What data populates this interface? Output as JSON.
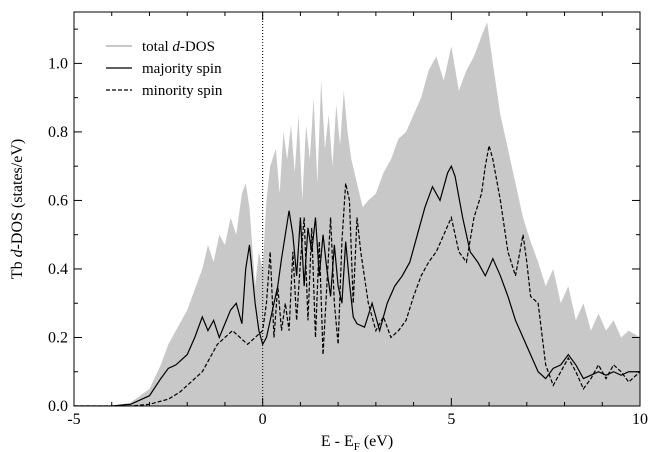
{
  "chart_data": {
    "type": "line",
    "xlabel": {
      "main": "E - E",
      "sub": "F",
      "unit": " (eV)"
    },
    "ylabel": {
      "pre": "Tb ",
      "ital": "d",
      "post": "-DOS (states/eV)"
    },
    "xlim": [
      -5,
      10
    ],
    "ylim": [
      0,
      1.15
    ],
    "xticks": [
      -5,
      0,
      5,
      10
    ],
    "yticks": [
      0.0,
      0.2,
      0.4,
      0.6,
      0.8,
      1.0
    ],
    "xtick_labels": [
      "-5",
      "0",
      "5",
      "10"
    ],
    "ytick_labels": [
      "0.0",
      "0.2",
      "0.4",
      "0.6",
      "0.8",
      "1.0"
    ],
    "fermi_line_x": 0,
    "legend_position": "top-left",
    "colors": {
      "total": "#c8c8c8",
      "majority": "#000000",
      "minority": "#000000",
      "axes": "#000000"
    },
    "series": [
      {
        "name": "total d-DOS",
        "legend_pre": "total ",
        "legend_ital": "d",
        "legend_post": "-DOS",
        "style": "filled",
        "x": [
          -5,
          -4,
          -3.5,
          -3.0,
          -2.7,
          -2.5,
          -2.3,
          -2.0,
          -1.8,
          -1.6,
          -1.45,
          -1.3,
          -1.15,
          -1.0,
          -0.85,
          -0.7,
          -0.55,
          -0.45,
          -0.35,
          -0.2,
          -0.1,
          0.0,
          0.1,
          0.2,
          0.35,
          0.45,
          0.55,
          0.65,
          0.75,
          0.85,
          0.95,
          1.05,
          1.15,
          1.25,
          1.35,
          1.45,
          1.55,
          1.65,
          1.75,
          1.85,
          1.95,
          2.05,
          2.15,
          2.25,
          2.35,
          2.5,
          2.65,
          2.8,
          3.0,
          3.2,
          3.4,
          3.6,
          3.8,
          4.0,
          4.2,
          4.4,
          4.6,
          4.8,
          5.0,
          5.2,
          5.4,
          5.6,
          5.8,
          5.95,
          6.1,
          6.3,
          6.5,
          6.7,
          6.9,
          7.1,
          7.3,
          7.5,
          7.7,
          7.9,
          8.1,
          8.3,
          8.5,
          8.7,
          8.9,
          9.1,
          9.3,
          9.5,
          9.7,
          10.0
        ],
        "y": [
          0.0,
          0.0,
          0.01,
          0.05,
          0.12,
          0.18,
          0.22,
          0.28,
          0.34,
          0.4,
          0.47,
          0.42,
          0.5,
          0.47,
          0.55,
          0.5,
          0.62,
          0.65,
          0.58,
          0.35,
          0.45,
          0.4,
          0.6,
          0.7,
          0.75,
          0.62,
          0.8,
          0.72,
          0.82,
          0.68,
          0.85,
          0.6,
          0.82,
          0.72,
          0.9,
          0.65,
          0.95,
          0.75,
          0.85,
          0.7,
          0.88,
          0.76,
          0.92,
          0.8,
          0.72,
          0.65,
          0.58,
          0.6,
          0.62,
          0.68,
          0.72,
          0.78,
          0.8,
          0.85,
          0.9,
          0.98,
          1.02,
          0.95,
          1.05,
          0.92,
          0.98,
          1.02,
          1.08,
          1.12,
          1.0,
          0.85,
          0.75,
          0.65,
          0.55,
          0.48,
          0.42,
          0.35,
          0.4,
          0.3,
          0.35,
          0.25,
          0.3,
          0.22,
          0.27,
          0.22,
          0.25,
          0.2,
          0.22,
          0.2
        ]
      },
      {
        "name": "majority spin",
        "legend_pre": "majority spin",
        "style": "solid",
        "x": [
          -5,
          -4,
          -3.5,
          -3.0,
          -2.7,
          -2.5,
          -2.3,
          -2.0,
          -1.8,
          -1.6,
          -1.45,
          -1.3,
          -1.15,
          -1.0,
          -0.85,
          -0.7,
          -0.55,
          -0.45,
          -0.35,
          -0.2,
          -0.1,
          0.0,
          0.1,
          0.2,
          0.3,
          0.4,
          0.5,
          0.6,
          0.7,
          0.8,
          0.9,
          1.0,
          1.1,
          1.2,
          1.3,
          1.4,
          1.5,
          1.6,
          1.7,
          1.8,
          1.9,
          2.0,
          2.1,
          2.2,
          2.3,
          2.4,
          2.5,
          2.7,
          2.9,
          3.1,
          3.3,
          3.5,
          3.7,
          3.9,
          4.1,
          4.3,
          4.5,
          4.7,
          4.9,
          5.0,
          5.1,
          5.3,
          5.5,
          5.7,
          5.9,
          6.1,
          6.3,
          6.5,
          6.7,
          6.9,
          7.1,
          7.3,
          7.5,
          7.7,
          7.9,
          8.1,
          8.3,
          8.5,
          8.7,
          8.9,
          9.1,
          9.3,
          9.5,
          9.7,
          10.0
        ],
        "y": [
          0.0,
          0.0,
          0.005,
          0.03,
          0.08,
          0.11,
          0.12,
          0.15,
          0.2,
          0.26,
          0.22,
          0.25,
          0.2,
          0.24,
          0.28,
          0.3,
          0.24,
          0.4,
          0.47,
          0.3,
          0.22,
          0.18,
          0.2,
          0.25,
          0.3,
          0.35,
          0.43,
          0.5,
          0.57,
          0.5,
          0.38,
          0.55,
          0.35,
          0.52,
          0.45,
          0.55,
          0.38,
          0.5,
          0.4,
          0.32,
          0.47,
          0.35,
          0.3,
          0.48,
          0.36,
          0.26,
          0.24,
          0.23,
          0.3,
          0.22,
          0.3,
          0.35,
          0.38,
          0.42,
          0.5,
          0.58,
          0.64,
          0.6,
          0.68,
          0.7,
          0.67,
          0.55,
          0.45,
          0.42,
          0.38,
          0.43,
          0.38,
          0.32,
          0.25,
          0.2,
          0.15,
          0.1,
          0.08,
          0.11,
          0.12,
          0.15,
          0.12,
          0.08,
          0.09,
          0.1,
          0.09,
          0.1,
          0.09,
          0.1,
          0.1
        ]
      },
      {
        "name": "minority spin",
        "legend_pre": "minority spin",
        "style": "dashed",
        "x": [
          -5,
          -4,
          -3.5,
          -3.0,
          -2.5,
          -2.2,
          -2.0,
          -1.8,
          -1.6,
          -1.4,
          -1.2,
          -1.0,
          -0.8,
          -0.6,
          -0.4,
          -0.2,
          0.0,
          0.1,
          0.2,
          0.3,
          0.4,
          0.5,
          0.6,
          0.7,
          0.8,
          0.9,
          1.0,
          1.1,
          1.2,
          1.3,
          1.4,
          1.5,
          1.6,
          1.7,
          1.8,
          1.9,
          2.0,
          2.1,
          2.2,
          2.3,
          2.4,
          2.5,
          2.6,
          2.8,
          3.0,
          3.2,
          3.4,
          3.6,
          3.8,
          4.0,
          4.2,
          4.4,
          4.6,
          4.8,
          5.0,
          5.2,
          5.4,
          5.6,
          5.8,
          5.9,
          6.0,
          6.1,
          6.3,
          6.5,
          6.7,
          6.9,
          7.0,
          7.1,
          7.3,
          7.5,
          7.7,
          7.9,
          8.1,
          8.3,
          8.5,
          8.7,
          8.9,
          9.1,
          9.3,
          9.5,
          9.7,
          10.0
        ],
        "y": [
          0.0,
          0.0,
          0.0,
          0.005,
          0.02,
          0.04,
          0.06,
          0.08,
          0.1,
          0.14,
          0.18,
          0.2,
          0.22,
          0.2,
          0.18,
          0.2,
          0.22,
          0.3,
          0.45,
          0.2,
          0.35,
          0.22,
          0.3,
          0.22,
          0.45,
          0.25,
          0.42,
          0.55,
          0.25,
          0.52,
          0.2,
          0.48,
          0.15,
          0.35,
          0.55,
          0.3,
          0.18,
          0.48,
          0.65,
          0.6,
          0.3,
          0.55,
          0.45,
          0.3,
          0.22,
          0.26,
          0.2,
          0.22,
          0.25,
          0.32,
          0.38,
          0.42,
          0.45,
          0.5,
          0.55,
          0.45,
          0.42,
          0.55,
          0.62,
          0.7,
          0.76,
          0.72,
          0.6,
          0.45,
          0.38,
          0.5,
          0.42,
          0.32,
          0.3,
          0.12,
          0.06,
          0.1,
          0.14,
          0.1,
          0.05,
          0.08,
          0.12,
          0.08,
          0.12,
          0.1,
          0.07,
          0.1
        ]
      }
    ]
  }
}
